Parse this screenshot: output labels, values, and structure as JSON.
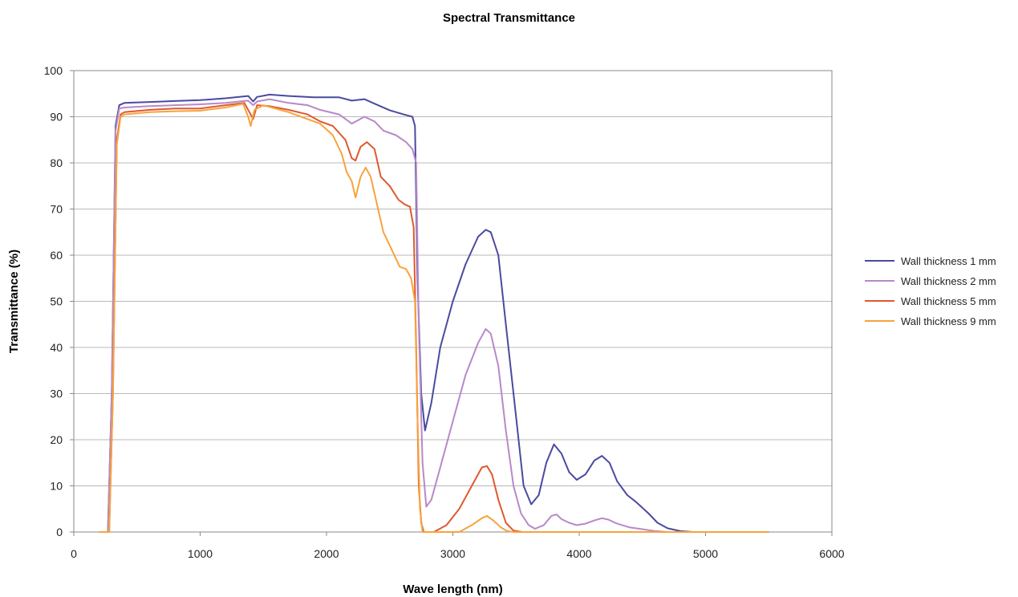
{
  "chart_data": {
    "type": "line",
    "title": "Spectral Transmittance",
    "xlabel": "Wave length (nm)",
    "ylabel": "Transmittance (%)",
    "xlim": [
      0,
      6000
    ],
    "ylim": [
      0,
      100
    ],
    "xticks": [
      0,
      1000,
      2000,
      3000,
      4000,
      5000,
      6000
    ],
    "yticks": [
      0,
      10,
      20,
      30,
      40,
      50,
      60,
      70,
      80,
      90,
      100
    ],
    "grid": "horizontal",
    "legend_position": "right",
    "series": [
      {
        "name": "Wall thickness 1 mm",
        "color": "#4a4aa0",
        "points": [
          [
            200,
            0
          ],
          [
            270,
            0
          ],
          [
            300,
            30
          ],
          [
            330,
            88
          ],
          [
            360,
            92.5
          ],
          [
            400,
            93
          ],
          [
            600,
            93.2
          ],
          [
            800,
            93.4
          ],
          [
            1000,
            93.6
          ],
          [
            1200,
            94
          ],
          [
            1380,
            94.5
          ],
          [
            1420,
            93.3
          ],
          [
            1450,
            94.3
          ],
          [
            1550,
            94.8
          ],
          [
            1700,
            94.5
          ],
          [
            1900,
            94.2
          ],
          [
            2100,
            94.2
          ],
          [
            2200,
            93.5
          ],
          [
            2300,
            93.8
          ],
          [
            2400,
            92.6
          ],
          [
            2500,
            91.4
          ],
          [
            2600,
            90.6
          ],
          [
            2680,
            90
          ],
          [
            2700,
            88
          ],
          [
            2720,
            55
          ],
          [
            2750,
            30
          ],
          [
            2780,
            22
          ],
          [
            2830,
            28
          ],
          [
            2900,
            40
          ],
          [
            3000,
            50
          ],
          [
            3100,
            58
          ],
          [
            3200,
            64
          ],
          [
            3260,
            65.5
          ],
          [
            3300,
            65
          ],
          [
            3360,
            60
          ],
          [
            3420,
            45
          ],
          [
            3500,
            25
          ],
          [
            3560,
            10
          ],
          [
            3620,
            6
          ],
          [
            3680,
            8
          ],
          [
            3740,
            15
          ],
          [
            3800,
            19
          ],
          [
            3860,
            17
          ],
          [
            3920,
            13
          ],
          [
            3980,
            11.3
          ],
          [
            4050,
            12.5
          ],
          [
            4120,
            15.5
          ],
          [
            4180,
            16.5
          ],
          [
            4240,
            15
          ],
          [
            4300,
            11
          ],
          [
            4380,
            8
          ],
          [
            4450,
            6.5
          ],
          [
            4550,
            4
          ],
          [
            4620,
            2
          ],
          [
            4700,
            0.8
          ],
          [
            4800,
            0.2
          ],
          [
            4900,
            0
          ],
          [
            5500,
            0
          ]
        ]
      },
      {
        "name": "Wall thickness 2 mm",
        "color": "#b789c8",
        "points": [
          [
            200,
            0
          ],
          [
            270,
            0
          ],
          [
            300,
            30
          ],
          [
            330,
            87
          ],
          [
            360,
            91.8
          ],
          [
            400,
            92
          ],
          [
            600,
            92.3
          ],
          [
            800,
            92.5
          ],
          [
            1000,
            92.7
          ],
          [
            1200,
            93
          ],
          [
            1380,
            93.5
          ],
          [
            1420,
            92.5
          ],
          [
            1450,
            93.3
          ],
          [
            1550,
            93.8
          ],
          [
            1700,
            93
          ],
          [
            1850,
            92.5
          ],
          [
            1950,
            91.5
          ],
          [
            2100,
            90.5
          ],
          [
            2200,
            88.5
          ],
          [
            2300,
            90
          ],
          [
            2380,
            89
          ],
          [
            2450,
            87
          ],
          [
            2550,
            86
          ],
          [
            2630,
            84.5
          ],
          [
            2680,
            83
          ],
          [
            2710,
            80
          ],
          [
            2730,
            45
          ],
          [
            2760,
            15
          ],
          [
            2790,
            5.5
          ],
          [
            2830,
            7
          ],
          [
            2900,
            14
          ],
          [
            3000,
            24
          ],
          [
            3100,
            34
          ],
          [
            3200,
            41
          ],
          [
            3260,
            44
          ],
          [
            3300,
            43
          ],
          [
            3360,
            36
          ],
          [
            3420,
            22
          ],
          [
            3480,
            10
          ],
          [
            3540,
            4
          ],
          [
            3600,
            1.5
          ],
          [
            3650,
            0.7
          ],
          [
            3720,
            1.5
          ],
          [
            3780,
            3.5
          ],
          [
            3820,
            3.8
          ],
          [
            3860,
            2.8
          ],
          [
            3920,
            2
          ],
          [
            3980,
            1.5
          ],
          [
            4050,
            1.8
          ],
          [
            4120,
            2.5
          ],
          [
            4180,
            3
          ],
          [
            4230,
            2.7
          ],
          [
            4300,
            1.8
          ],
          [
            4400,
            1
          ],
          [
            4500,
            0.6
          ],
          [
            4600,
            0.2
          ],
          [
            4700,
            0
          ],
          [
            5500,
            0
          ]
        ]
      },
      {
        "name": "Wall thickness 5 mm",
        "color": "#e0582e",
        "points": [
          [
            200,
            0
          ],
          [
            280,
            0
          ],
          [
            310,
            30
          ],
          [
            340,
            85
          ],
          [
            370,
            90.5
          ],
          [
            400,
            91
          ],
          [
            600,
            91.5
          ],
          [
            800,
            91.8
          ],
          [
            1000,
            91.8
          ],
          [
            1200,
            92.5
          ],
          [
            1350,
            93
          ],
          [
            1390,
            91
          ],
          [
            1420,
            89.5
          ],
          [
            1450,
            92.5
          ],
          [
            1550,
            92.3
          ],
          [
            1700,
            91.5
          ],
          [
            1850,
            90.5
          ],
          [
            1950,
            89
          ],
          [
            2050,
            88
          ],
          [
            2150,
            85
          ],
          [
            2200,
            81
          ],
          [
            2230,
            80.5
          ],
          [
            2270,
            83.5
          ],
          [
            2320,
            84.5
          ],
          [
            2380,
            83
          ],
          [
            2430,
            77
          ],
          [
            2500,
            75
          ],
          [
            2570,
            72
          ],
          [
            2620,
            71
          ],
          [
            2660,
            70.5
          ],
          [
            2690,
            66
          ],
          [
            2710,
            40
          ],
          [
            2730,
            10
          ],
          [
            2750,
            2
          ],
          [
            2770,
            0
          ],
          [
            2850,
            0
          ],
          [
            2950,
            1.5
          ],
          [
            3050,
            5
          ],
          [
            3150,
            10
          ],
          [
            3230,
            14
          ],
          [
            3270,
            14.3
          ],
          [
            3310,
            12.5
          ],
          [
            3360,
            7
          ],
          [
            3420,
            2
          ],
          [
            3480,
            0.3
          ],
          [
            3550,
            0
          ],
          [
            5500,
            0
          ]
        ]
      },
      {
        "name": "Wall thickness 9 mm",
        "color": "#f7a33c",
        "points": [
          [
            200,
            0
          ],
          [
            280,
            0
          ],
          [
            310,
            30
          ],
          [
            340,
            84
          ],
          [
            370,
            90
          ],
          [
            400,
            90.5
          ],
          [
            600,
            91
          ],
          [
            800,
            91.2
          ],
          [
            1000,
            91.3
          ],
          [
            1200,
            92
          ],
          [
            1340,
            92.8
          ],
          [
            1380,
            90
          ],
          [
            1400,
            88
          ],
          [
            1430,
            91.5
          ],
          [
            1500,
            92.5
          ],
          [
            1700,
            91
          ],
          [
            1850,
            89.5
          ],
          [
            1950,
            88.5
          ],
          [
            2050,
            86
          ],
          [
            2120,
            82
          ],
          [
            2160,
            78
          ],
          [
            2200,
            76
          ],
          [
            2230,
            72.5
          ],
          [
            2270,
            77
          ],
          [
            2310,
            79
          ],
          [
            2350,
            77
          ],
          [
            2400,
            71
          ],
          [
            2450,
            65
          ],
          [
            2520,
            61
          ],
          [
            2580,
            57.5
          ],
          [
            2630,
            57
          ],
          [
            2670,
            55
          ],
          [
            2700,
            50
          ],
          [
            2720,
            25
          ],
          [
            2740,
            5
          ],
          [
            2760,
            0
          ],
          [
            3050,
            0
          ],
          [
            3150,
            1.5
          ],
          [
            3230,
            3
          ],
          [
            3270,
            3.5
          ],
          [
            3320,
            2.5
          ],
          [
            3380,
            1
          ],
          [
            3430,
            0.2
          ],
          [
            3480,
            0
          ],
          [
            5500,
            0
          ]
        ]
      }
    ]
  }
}
